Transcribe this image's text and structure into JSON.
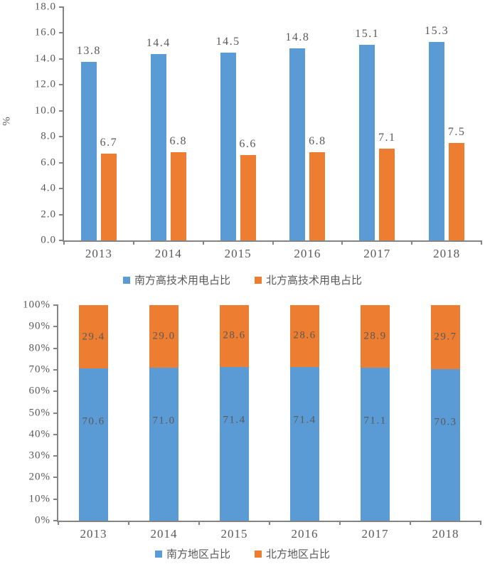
{
  "colors": {
    "south_blue": "#5B9BD5",
    "north_orange": "#ED7D31",
    "axis_line": "#848484",
    "text_gray": "#595959"
  },
  "chart_data": [
    {
      "type": "bar",
      "title": "",
      "categories": [
        "2013",
        "2014",
        "2015",
        "2016",
        "2017",
        "2018"
      ],
      "series": [
        {
          "name": "南方高技术用电占比",
          "color": "#5B9BD5",
          "values": [
            13.8,
            14.4,
            14.5,
            14.8,
            15.1,
            15.3
          ]
        },
        {
          "name": "北方高技术用电占比",
          "color": "#ED7D31",
          "values": [
            6.7,
            6.8,
            6.6,
            6.8,
            7.1,
            7.5
          ]
        }
      ],
      "xlabel": "",
      "ylabel": "%",
      "ylim": [
        0,
        18
      ],
      "ytick_labels": [
        "0.0",
        "2.0",
        "4.0",
        "6.0",
        "8.0",
        "10.0",
        "12.0",
        "14.0",
        "16.0",
        "18.0"
      ],
      "grid": false,
      "legend_position": "bottom",
      "data_labels": "above-bars"
    },
    {
      "type": "bar",
      "subtype": "stacked-100",
      "title": "",
      "categories": [
        "2013",
        "2014",
        "2015",
        "2016",
        "2017",
        "2018"
      ],
      "series": [
        {
          "name": "南方地区占比",
          "color": "#5B9BD5",
          "values": [
            70.6,
            71.0,
            71.4,
            71.4,
            71.1,
            70.3
          ]
        },
        {
          "name": "北方地区占比",
          "color": "#ED7D31",
          "values": [
            29.4,
            29.0,
            28.6,
            28.6,
            28.9,
            29.7
          ]
        }
      ],
      "xlabel": "",
      "ylabel": "",
      "ylim": [
        0,
        100
      ],
      "ytick_labels": [
        "0%",
        "10%",
        "20%",
        "30%",
        "40%",
        "50%",
        "60%",
        "70%",
        "80%",
        "90%",
        "100%"
      ],
      "grid": false,
      "legend_position": "bottom",
      "data_labels": "inside-segments"
    }
  ]
}
